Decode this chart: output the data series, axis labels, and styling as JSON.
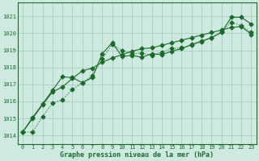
{
  "background_color": "#ceeae0",
  "grid_color": "#9dc8b8",
  "line_color": "#1a6b2a",
  "xlabel": "Graphe pression niveau de la mer (hPa)",
  "xlim": [
    -0.5,
    23.5
  ],
  "ylim": [
    1013.5,
    1021.8
  ],
  "yticks": [
    1014,
    1015,
    1016,
    1017,
    1018,
    1019,
    1020,
    1021
  ],
  "xticks": [
    0,
    1,
    2,
    3,
    4,
    5,
    6,
    7,
    8,
    9,
    10,
    11,
    12,
    13,
    14,
    15,
    16,
    17,
    18,
    19,
    20,
    21,
    22,
    23
  ],
  "line1_x": [
    0,
    1,
    2,
    3,
    4,
    5,
    6,
    7,
    8,
    9,
    10,
    11,
    12,
    13,
    14,
    15,
    16,
    17,
    18,
    19,
    20,
    21,
    22,
    23
  ],
  "line1_y": [
    1014.2,
    1014.2,
    1015.1,
    1015.9,
    1016.1,
    1016.7,
    1017.1,
    1017.5,
    1018.5,
    1019.35,
    1019.0,
    1018.8,
    1018.85,
    1018.7,
    1018.9,
    1019.1,
    1019.15,
    1019.3,
    1019.5,
    1019.75,
    1020.1,
    1020.65,
    1020.45,
    1020.05
  ],
  "line2_x": [
    0,
    1,
    2,
    3,
    4,
    5,
    6,
    7,
    8,
    9,
    10,
    11,
    12,
    13,
    14,
    15,
    16,
    17,
    18,
    19,
    20,
    21,
    22,
    23
  ],
  "line2_y": [
    1014.2,
    1015.0,
    1015.8,
    1016.55,
    1016.85,
    1017.35,
    1017.8,
    1017.95,
    1018.3,
    1018.55,
    1018.75,
    1018.95,
    1019.1,
    1019.15,
    1019.3,
    1019.45,
    1019.6,
    1019.75,
    1019.9,
    1020.05,
    1020.2,
    1020.35,
    1020.4,
    1019.95
  ],
  "line3_x": [
    0,
    1,
    2,
    3,
    4,
    5,
    6,
    7,
    8,
    9,
    10,
    11,
    12,
    13,
    14,
    15,
    16,
    17,
    18,
    19,
    20,
    21,
    22,
    23
  ],
  "line3_y": [
    1014.2,
    1015.05,
    1015.85,
    1016.65,
    1017.45,
    1017.4,
    1017.1,
    1017.4,
    1018.8,
    1019.45,
    1018.65,
    1018.7,
    1018.6,
    1018.8,
    1018.75,
    1018.95,
    1019.1,
    1019.35,
    1019.55,
    1019.75,
    1020.05,
    1020.95,
    1020.95,
    1020.55
  ],
  "marker": "D",
  "marker_size": 2.5,
  "linewidth": 0.8
}
